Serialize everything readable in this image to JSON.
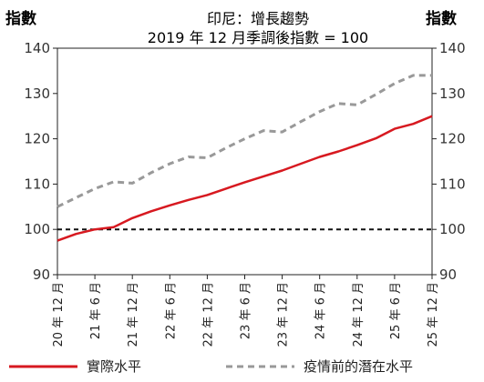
{
  "chart_data": {
    "type": "line",
    "title": "印尼：增長趨勢",
    "subtitle": "2019 年 12 月季調後指數 = 100",
    "ylabel_left": "指數",
    "ylabel_right": "指數",
    "ylim": [
      90,
      140
    ],
    "yticks": [
      "90",
      "100",
      "110",
      "120",
      "130",
      "140"
    ],
    "x_labels": [
      "20 年 12 月",
      "21 年 6 月",
      "21 年 12 月",
      "22 年 6 月",
      "22 年 12 月",
      "23 年 6 月",
      "23 年 12 月",
      "24 年 6 月",
      "24 年 12 月",
      "25 年 6 月",
      "25 年 12 月"
    ],
    "x_quarters": [
      "20Q4",
      "21Q1",
      "21Q2",
      "21Q3",
      "21Q4",
      "22Q1",
      "22Q2",
      "22Q3",
      "22Q4",
      "23Q1",
      "23Q2",
      "23Q3",
      "23Q4",
      "24Q1",
      "24Q2",
      "24Q3",
      "24Q4",
      "25Q1",
      "25Q2",
      "25Q3",
      "25Q4"
    ],
    "reference_line": 100,
    "grid": false,
    "legend_position": "bottom",
    "series": [
      {
        "name": "實際水平",
        "color": "#d71920",
        "style": "solid",
        "values": [
          97.5,
          99.0,
          100.0,
          100.5,
          102.5,
          104.0,
          105.3,
          106.5,
          107.6,
          109.0,
          110.4,
          111.7,
          113.0,
          114.5,
          116.0,
          117.2,
          118.6,
          120.1,
          122.2,
          123.3,
          125.0
        ]
      },
      {
        "name": "疫情前的潛在水平",
        "color": "#999999",
        "style": "dashed",
        "values": [
          105.0,
          107.0,
          109.0,
          110.5,
          110.2,
          112.5,
          114.5,
          116.0,
          115.8,
          118.0,
          120.0,
          121.8,
          121.5,
          123.8,
          126.0,
          127.8,
          127.5,
          129.8,
          132.2,
          134.0,
          134.0
        ]
      }
    ]
  }
}
